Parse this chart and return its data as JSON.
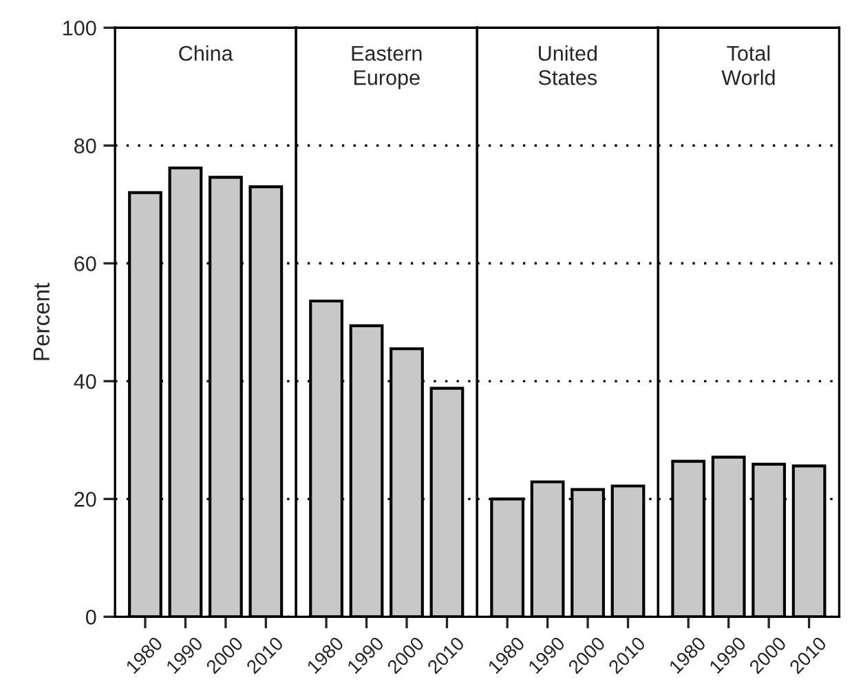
{
  "chart_data": [
    {
      "type": "bar",
      "title": "China",
      "ylabel": "Percent",
      "categories": [
        "1980",
        "1990",
        "2000",
        "2010"
      ],
      "values": [
        72,
        76.2,
        74.6,
        73
      ],
      "color": "#c8c8c8",
      "ylim": [
        0,
        100
      ],
      "yticks": [
        0,
        20,
        40,
        60,
        80,
        100
      ],
      "grid": "y"
    },
    {
      "type": "bar",
      "title": "Eastern\nEurope",
      "categories": [
        "1980",
        "1990",
        "2000",
        "2010"
      ],
      "values": [
        53.6,
        49.4,
        45.5,
        38.8
      ],
      "color": "#c8c8c8",
      "ylim": [
        0,
        100
      ],
      "yticks": [
        0,
        20,
        40,
        60,
        80,
        100
      ],
      "grid": "y",
      "tick_labels": "x"
    },
    {
      "type": "bar",
      "title": "United\nStates",
      "categories": [
        "1980",
        "1990",
        "2000",
        "2010"
      ],
      "values": [
        20,
        22.9,
        21.6,
        22.2
      ],
      "color": "#c8c8c8",
      "ylim": [
        0,
        100
      ],
      "yticks": [
        0,
        20,
        40,
        60,
        80,
        100
      ],
      "grid": "y",
      "tick_labels": "x"
    },
    {
      "type": "bar",
      "title": "Total\nWorld",
      "categories": [
        "1980",
        "1990",
        "2000",
        "2010"
      ],
      "values": [
        26.4,
        27.1,
        25.9,
        25.6
      ],
      "color": "#c8c8c8",
      "ylim": [
        0,
        100
      ],
      "yticks": [
        0,
        20,
        40,
        60,
        80,
        100
      ],
      "grid": "y",
      "tick_labels": "x"
    }
  ]
}
